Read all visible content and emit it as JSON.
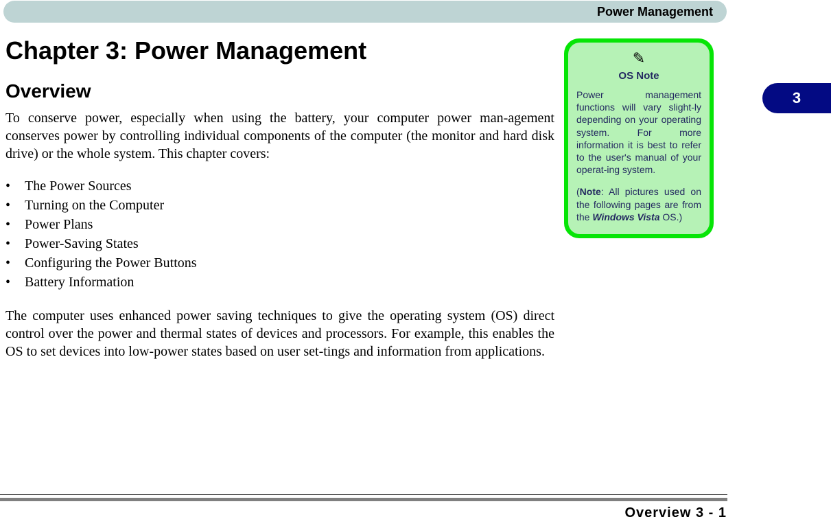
{
  "header": {
    "title": "Power Management",
    "bg_color": "#bed4d4"
  },
  "chapter": {
    "title": "Chapter 3: Power Management"
  },
  "section": {
    "title": "Overview"
  },
  "intro_paragraph": "To conserve power, especially when using the battery, your computer power man-agement conserves power by controlling individual components of the computer (the monitor and hard disk drive) or the whole system. This chapter covers:",
  "bullet_items": [
    "The Power Sources",
    "Turning on the Computer",
    "Power Plans",
    "Power-Saving States",
    "Configuring the Power Buttons",
    "Battery Information"
  ],
  "closing_paragraph": "The computer uses enhanced power saving techniques to give the operating system (OS) direct control over the power and thermal states of devices and processors. For example, this enables the OS to set devices into low-power states based on user set-tings and information from applications.",
  "page_tab": {
    "number": "3",
    "bg_color": "#030a83",
    "text_color": "#ffffff"
  },
  "note": {
    "icon": "✎",
    "title": "OS Note",
    "body1_parts": {
      "text": "Power management functions will vary slight-ly depending on your operating system. For more information it is best to refer to the user's manual of your operat-ing system."
    },
    "body2_parts": {
      "prefix": "(",
      "bold": "Note",
      "mid": ": All pictures used on the following pages are from the ",
      "bold_italic": "Windows Vista",
      "suffix": " OS.)"
    },
    "outer_bg": "#06e506",
    "inner_bg": "#b6f2b6",
    "text_color": "#232960"
  },
  "footer": {
    "text": "Overview 3 - 1",
    "divider_color": "#808080"
  }
}
